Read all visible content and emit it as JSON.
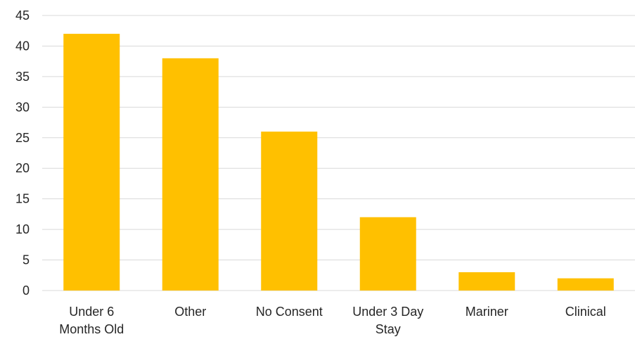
{
  "chart_data": {
    "type": "bar",
    "title": "",
    "xlabel": "",
    "ylabel": "",
    "categories": [
      [
        "Under 6",
        "Months Old"
      ],
      [
        "Other"
      ],
      [
        "No Consent"
      ],
      [
        "Under 3 Day",
        "Stay"
      ],
      [
        "Mariner"
      ],
      [
        "Clinical"
      ]
    ],
    "values": [
      42,
      38,
      26,
      12,
      3,
      2
    ],
    "ylim": [
      0,
      45
    ],
    "yticks": [
      0,
      5,
      10,
      15,
      20,
      25,
      30,
      35,
      40,
      45
    ],
    "grid": true,
    "legend": "none",
    "bar_color": "#FFC000",
    "grid_color": "#D9D9D9"
  }
}
